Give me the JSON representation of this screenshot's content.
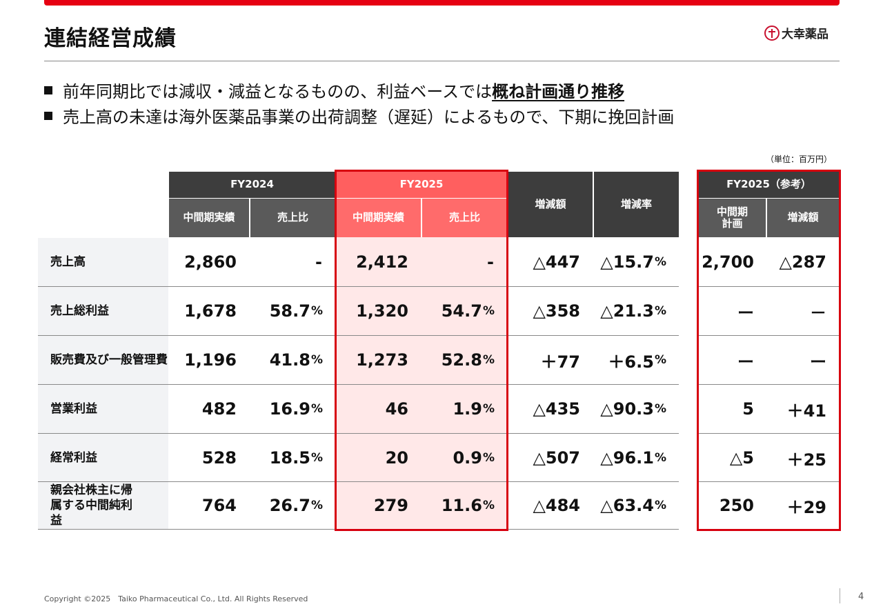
{
  "page": {
    "title": "連結経営成績",
    "logo_text": "大幸薬品",
    "brand_color": "#e60012",
    "footer": "Copyright ©2025　Taiko Pharmaceutical Co., Ltd. All Rights Reserved",
    "page_number": "4"
  },
  "bullets": [
    {
      "text": "前年同期比では減収・減益となるものの、利益ベースでは",
      "emphasis": "概ね計画通り推移"
    },
    {
      "text": "売上高の未達は海外医薬品事業の出荷調整（遅延）によるもので、下期に挽回計画",
      "emphasis": ""
    }
  ],
  "table": {
    "unit": "（単位：百万円）",
    "groups": {
      "fy2024": "FY2024",
      "fy2025": "FY2025",
      "change_amount": "増減額",
      "change_rate": "増減率",
      "plan": "FY2025（参考）"
    },
    "subheaders": {
      "fy2024_actual": "中間期実績",
      "fy2024_ratio": "売上比",
      "fy2025_actual": "中間期実績",
      "fy2025_ratio": "売上比",
      "plan_value": "中間期\n計画",
      "plan_diff": "増減額"
    },
    "rows": [
      {
        "label": "売上高",
        "fy2024": "2,860",
        "fy2024_ratio": "-",
        "fy2024_ratio_pct": "",
        "fy2025": "2,412",
        "fy2025_ratio": "-",
        "fy2025_ratio_pct": "",
        "change": "△447",
        "rate": "△15.7",
        "rate_pct": "%",
        "plan": "2,700",
        "plan_diff": "△287"
      },
      {
        "label": "売上総利益",
        "fy2024": "1,678",
        "fy2024_ratio": "58.7",
        "fy2024_ratio_pct": "%",
        "fy2025": "1,320",
        "fy2025_ratio": "54.7",
        "fy2025_ratio_pct": "%",
        "change": "△358",
        "rate": "△21.3",
        "rate_pct": "%",
        "plan": "ー",
        "plan_diff": "－"
      },
      {
        "label": "販売費及び一般管理費",
        "fy2024": "1,196",
        "fy2024_ratio": "41.8",
        "fy2024_ratio_pct": "%",
        "fy2025": "1,273",
        "fy2025_ratio": "52.8",
        "fy2025_ratio_pct": "%",
        "change": "＋77",
        "rate": "＋6.5",
        "rate_pct": "%",
        "plan": "ー",
        "plan_diff": "ー"
      },
      {
        "label": "営業利益",
        "fy2024": "482",
        "fy2024_ratio": "16.9",
        "fy2024_ratio_pct": "%",
        "fy2025": "46",
        "fy2025_ratio": "1.9",
        "fy2025_ratio_pct": "%",
        "change": "△435",
        "rate": "△90.3",
        "rate_pct": "%",
        "plan": "5",
        "plan_diff": "＋41"
      },
      {
        "label": "経常利益",
        "fy2024": "528",
        "fy2024_ratio": "18.5",
        "fy2024_ratio_pct": "%",
        "fy2025": "20",
        "fy2025_ratio": "0.9",
        "fy2025_ratio_pct": "%",
        "change": "△507",
        "rate": "△96.1",
        "rate_pct": "%",
        "plan": "△5",
        "plan_diff": "＋25"
      },
      {
        "label": "親会社株主に帰属する中間純利益",
        "fy2024": "764",
        "fy2024_ratio": "26.7",
        "fy2024_ratio_pct": "%",
        "fy2025": "279",
        "fy2025_ratio": "11.6",
        "fy2025_ratio_pct": "%",
        "change": "△484",
        "rate": "△63.4",
        "rate_pct": "%",
        "plan": "250",
        "plan_diff": "＋29"
      }
    ]
  }
}
